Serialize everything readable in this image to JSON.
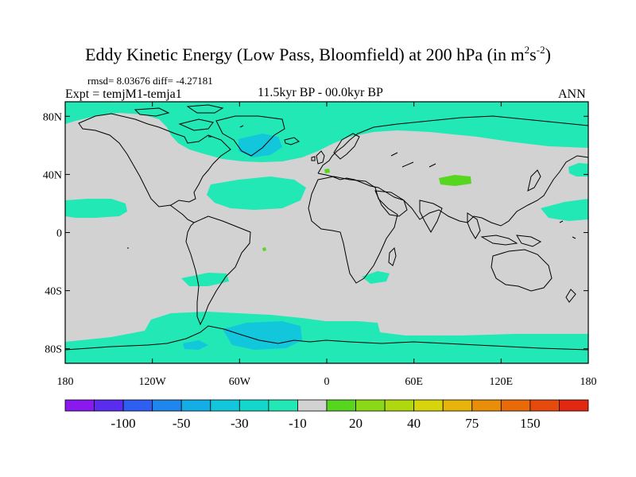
{
  "title": {
    "main": "Eddy Kinetic Energy (Low Pass, Bloomfield) at 200 hPa (in m",
    "sup1": "2",
    "mid": "s",
    "sup2": "-2",
    "end": ")"
  },
  "stats_text": "rmsd= 8.03676 diff= -4.27181",
  "expt_label": "Expt = temjM1-temja1",
  "period_label": "11.5kyr BP - 00.0kyr BP",
  "season_label": "ANN",
  "map": {
    "projection": "cylindrical equidistant",
    "lon_range": [
      -180,
      180
    ],
    "lat_range": [
      -90,
      90
    ],
    "lat_ticks": [
      {
        "value": 80,
        "label": "80N"
      },
      {
        "value": 40,
        "label": "40N"
      },
      {
        "value": 0,
        "label": "0"
      },
      {
        "value": -40,
        "label": "40S"
      },
      {
        "value": -80,
        "label": "80S"
      }
    ],
    "lon_ticks": [
      {
        "value": -180,
        "label": "180"
      },
      {
        "value": -120,
        "label": "120W"
      },
      {
        "value": -60,
        "label": "60W"
      },
      {
        "value": 0,
        "label": "0"
      },
      {
        "value": 60,
        "label": "60E"
      },
      {
        "value": 120,
        "label": "120E"
      },
      {
        "value": 180,
        "label": "180"
      }
    ]
  },
  "colorbar": {
    "colors": [
      "#8a19f0",
      "#5a2cf0",
      "#2f5ef2",
      "#1f86ee",
      "#13aee6",
      "#12c6dc",
      "#12d8cc",
      "#22e8b6",
      "#d2d2d2",
      "#57d61f",
      "#8ad816",
      "#b0d80e",
      "#d7d40b",
      "#e6b40a",
      "#e88e08",
      "#e86a08",
      "#e64a0c",
      "#e02812"
    ],
    "labels": [
      {
        "boundary": 2,
        "text": "-100"
      },
      {
        "boundary": 4,
        "text": "-50"
      },
      {
        "boundary": 6,
        "text": "-30"
      },
      {
        "boundary": 8,
        "text": "-10"
      },
      {
        "boundary": 10,
        "text": "20"
      },
      {
        "boundary": 12,
        "text": "40"
      },
      {
        "boundary": 14,
        "text": "75"
      },
      {
        "boundary": 16,
        "text": "150"
      }
    ]
  },
  "colors": {
    "background": "#d2d2d2",
    "negative_small": "#22e8b6",
    "negative_mid": "#12c6dc",
    "positive_small": "#57d61f",
    "coast": "#000000"
  }
}
